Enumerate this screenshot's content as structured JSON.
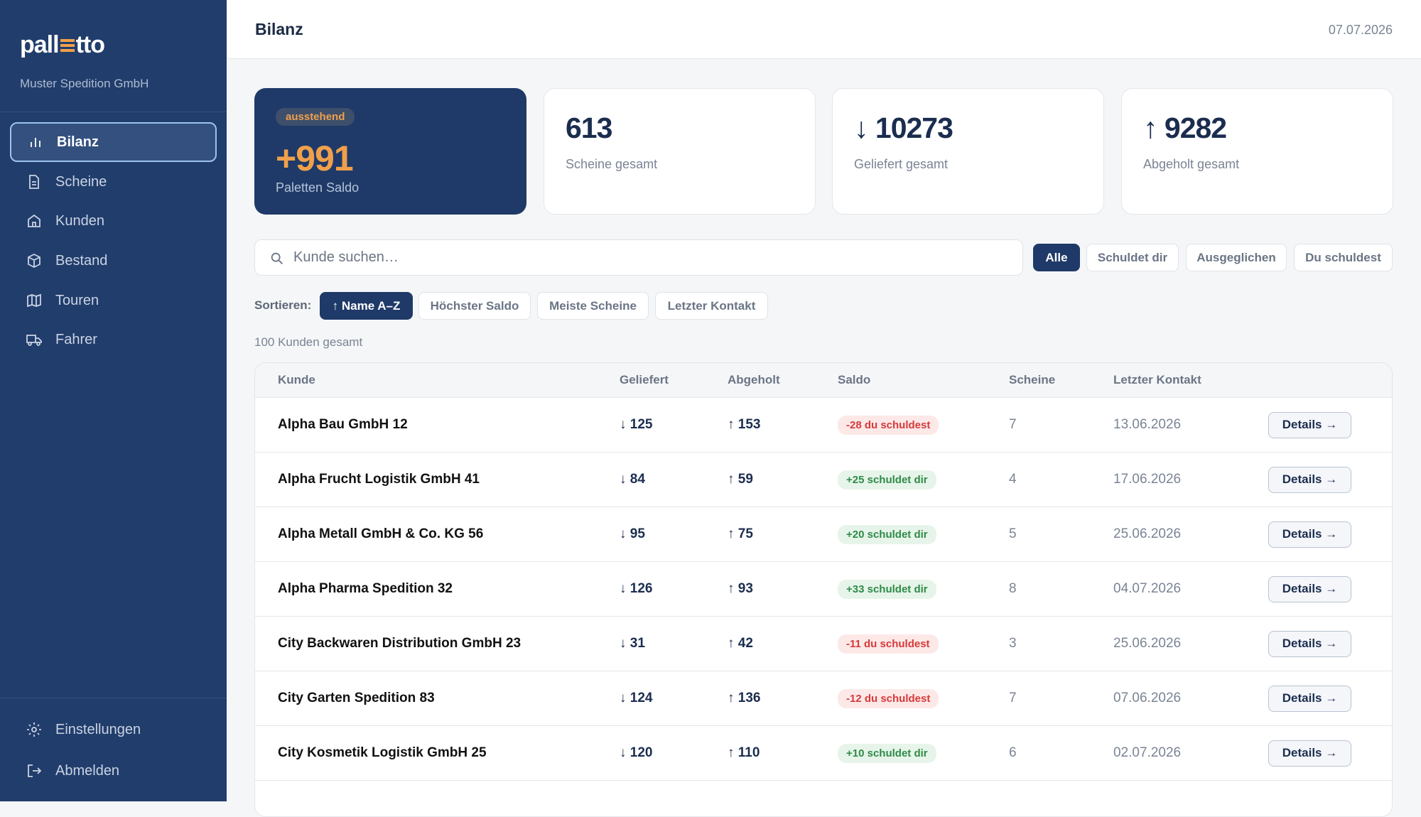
{
  "brand": {
    "prefix": "pall",
    "suffix": "tto"
  },
  "company": "Muster Spedition GmbH",
  "nav": [
    "Bilanz",
    "Scheine",
    "Kunden",
    "Bestand",
    "Touren",
    "Fahrer"
  ],
  "footer_nav": [
    "Einstellungen",
    "Abmelden"
  ],
  "header": {
    "title": "Bilanz",
    "date": "07.07.2026"
  },
  "highlight": {
    "badge": "ausstehend",
    "value": "+991",
    "label": "Paletten Saldo"
  },
  "stats": [
    {
      "value": "613",
      "label": "Scheine gesamt"
    },
    {
      "value": "↓ 10273",
      "label": "Geliefert gesamt"
    },
    {
      "value": "↑ 9282",
      "label": "Abgeholt gesamt"
    }
  ],
  "search_placeholder": "Kunde suchen…",
  "filters": [
    "Alle",
    "Schuldet dir",
    "Ausgeglichen",
    "Du schuldest"
  ],
  "sort": {
    "label": "Sortieren:",
    "options": [
      "↑ Name A–Z",
      "Höchster Saldo",
      "Meiste Scheine",
      "Letzter Kontakt"
    ]
  },
  "count": "100 Kunden gesamt",
  "table": {
    "columns": [
      "Kunde",
      "Geliefert",
      "Abgeholt",
      "Saldo",
      "Scheine",
      "Letzter Kontakt"
    ],
    "rows": [
      [
        "Alpha Bau GmbH 12",
        "↓ 125",
        "↑ 153",
        "-28 du schuldest",
        "7",
        "13.06.2026",
        "Details →"
      ],
      [
        "Alpha Frucht Logistik GmbH 41",
        "↓ 84",
        "↑ 59",
        "+25 schuldet dir",
        "4",
        "17.06.2026",
        "Details →"
      ],
      [
        "Alpha Metall GmbH & Co. KG 56",
        "↓ 95",
        "↑ 75",
        "+20 schuldet dir",
        "5",
        "25.06.2026",
        "Details →"
      ],
      [
        "Alpha Pharma Spedition 32",
        "↓ 126",
        "↑ 93",
        "+33 schuldet dir",
        "8",
        "04.07.2026",
        "Details →"
      ],
      [
        "City Backwaren Distribution GmbH 23",
        "↓ 31",
        "↑ 42",
        "-11 du schuldest",
        "3",
        "25.06.2026",
        "Details →"
      ],
      [
        "City Garten Spedition 83",
        "↓ 124",
        "↑ 136",
        "-12 du schuldest",
        "7",
        "07.06.2026",
        "Details →"
      ],
      [
        "City Kosmetik Logistik GmbH 25",
        "↓ 120",
        "↑ 110",
        "+10 schuldet dir",
        "6",
        "02.07.2026",
        "Details →"
      ]
    ]
  }
}
